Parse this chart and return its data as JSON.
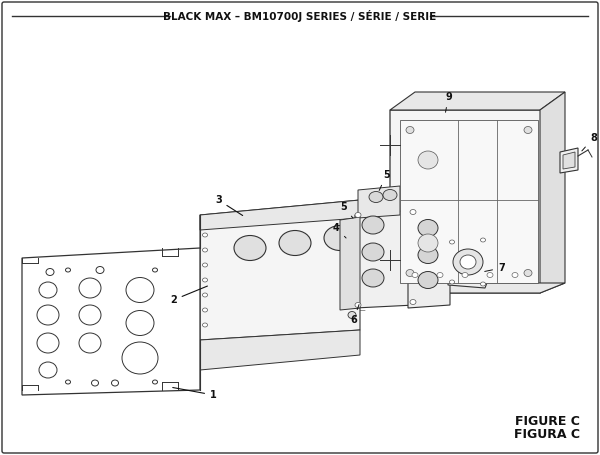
{
  "title": "BLACK MAX – BM10700J SERIES / SÉRIE / SERIE",
  "figure_label": "FIGURE C",
  "figura_label": "FIGURA C",
  "bg_color": "#ffffff",
  "border_color": "#333333",
  "text_color": "#111111",
  "line_color": "#333333",
  "title_fontsize": 7.5,
  "label_fontsize": 7.0,
  "figsize": [
    6.0,
    4.55
  ],
  "dpi": 100
}
